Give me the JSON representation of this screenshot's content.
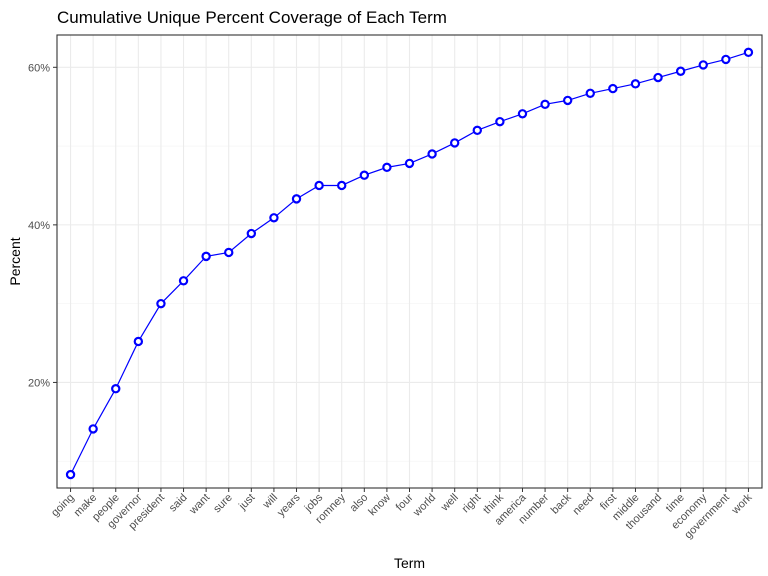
{
  "chart_data": {
    "type": "line",
    "title": "Cumulative Unique Percent Coverage of Each Term",
    "xlabel": "Term",
    "ylabel": "Percent",
    "categories": [
      "going",
      "make",
      "people",
      "governor",
      "president",
      "said",
      "want",
      "sure",
      "just",
      "will",
      "years",
      "jobs",
      "romney",
      "also",
      "know",
      "four",
      "world",
      "well",
      "right",
      "think",
      "america",
      "number",
      "back",
      "need",
      "first",
      "middle",
      "thousand",
      "time",
      "economy",
      "government",
      "work"
    ],
    "values": [
      8.3,
      14.1,
      19.2,
      25.2,
      30.0,
      32.9,
      36.0,
      36.5,
      38.9,
      40.9,
      43.3,
      45.0,
      45.0,
      46.3,
      47.3,
      47.8,
      49.0,
      50.4,
      52.0,
      53.1,
      54.1,
      55.3,
      55.8,
      56.7,
      57.3,
      57.9,
      58.7,
      59.5,
      60.3,
      61.0,
      61.9
    ],
    "y_ticks": [
      20,
      40,
      60
    ],
    "y_tick_labels": [
      "20%",
      "40%",
      "60%"
    ],
    "ylim": [
      6.6,
      64.1
    ],
    "grid": true,
    "legend": "none",
    "colors": {
      "series": "#0000ff",
      "point_fill": "#ffffff"
    }
  }
}
